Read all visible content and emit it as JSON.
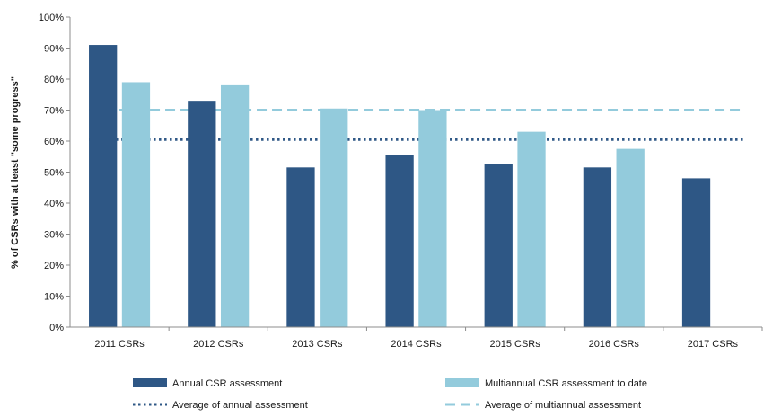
{
  "chart_data": {
    "type": "bar",
    "ylabel": "% of CSRs with at least \"some progress\"",
    "ylim": [
      0,
      100
    ],
    "yticks": [
      0,
      10,
      20,
      30,
      40,
      50,
      60,
      70,
      80,
      90,
      100
    ],
    "ytick_suffix": "%",
    "categories": [
      "2011 CSRs",
      "2012 CSRs",
      "2013 CSRs",
      "2014 CSRs",
      "2015 CSRs",
      "2016 CSRs",
      "2017 CSRs"
    ],
    "series": [
      {
        "name": "Annual CSR assessment",
        "color": "#2e5785",
        "values": [
          91,
          73,
          51.5,
          55.5,
          52.5,
          51.5,
          48
        ]
      },
      {
        "name": "Multiannual CSR assessment to date",
        "color": "#93cbdc",
        "values": [
          79,
          78,
          70.5,
          70,
          63,
          57.5,
          null
        ]
      }
    ],
    "reference_lines": [
      {
        "name": "Average of annual assessment",
        "value": 60.5,
        "color": "#2e5785",
        "style": "dotted"
      },
      {
        "name": "Average of multiannual assessment",
        "value": 70,
        "color": "#93cbdc",
        "style": "dashed"
      }
    ],
    "grid": false,
    "legend_position": "bottom"
  }
}
